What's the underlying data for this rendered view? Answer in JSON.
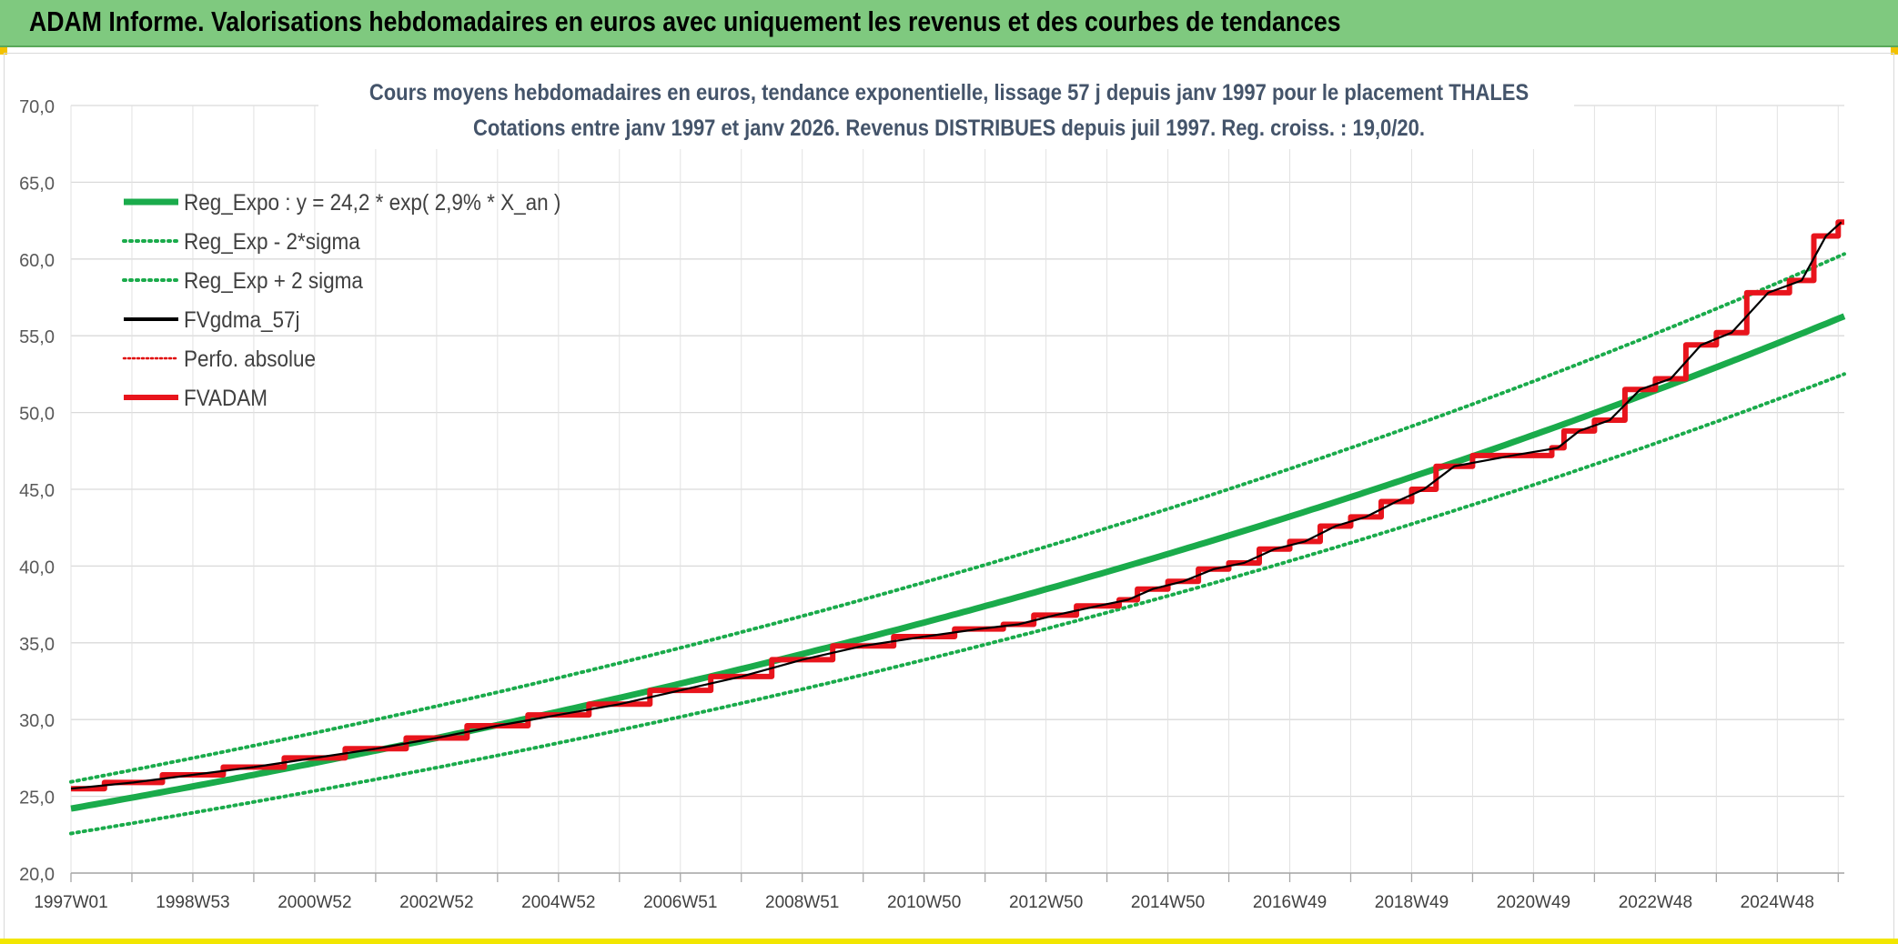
{
  "banner": {
    "title": "ADAM Informe. Valorisations hebdomadaires en euros avec uniquement les revenus et des courbes de tendances",
    "color": "#7fc97f"
  },
  "chart_data": {
    "type": "line",
    "title": "Cours moyens hebdomadaires en euros, tendance exponentielle, lissage 57 j depuis janv 1997 pour le placement THALES",
    "subtitle": "Cotations entre janv 1997 et janv 2026. Revenus DISTRIBUES depuis juil 1997. Reg. croiss. : 19,0/20.",
    "xlabel": "",
    "ylabel": "",
    "ylim": [
      20,
      70
    ],
    "xlim_years": [
      1997.0,
      2026.1
    ],
    "y_ticks": [
      "20,0",
      "25,0",
      "30,0",
      "35,0",
      "40,0",
      "45,0",
      "50,0",
      "55,0",
      "60,0",
      "65,0",
      "70,0"
    ],
    "x_ticks": [
      {
        "label": "1997W01",
        "year": 1997.0
      },
      {
        "label": "1998W53",
        "year": 1999.0
      },
      {
        "label": "2000W52",
        "year": 2001.0
      },
      {
        "label": "2002W52",
        "year": 2003.0
      },
      {
        "label": "2004W52",
        "year": 2005.0
      },
      {
        "label": "2006W51",
        "year": 2007.0
      },
      {
        "label": "2008W51",
        "year": 2009.0
      },
      {
        "label": "2010W50",
        "year": 2011.0
      },
      {
        "label": "2012W50",
        "year": 2013.0
      },
      {
        "label": "2014W50",
        "year": 2015.0
      },
      {
        "label": "2016W49",
        "year": 2017.0
      },
      {
        "label": "2018W49",
        "year": 2019.0
      },
      {
        "label": "2020W49",
        "year": 2021.0
      },
      {
        "label": "2022W48",
        "year": 2023.0
      },
      {
        "label": "2024W48",
        "year": 2025.0
      }
    ],
    "grid": true,
    "legend_position": "top-left",
    "regression": {
      "a": 24.2,
      "rate": 0.029,
      "sigma_low_factor": 0.933,
      "sigma_high_factor": 1.072
    },
    "series": [
      {
        "name": "Reg_Expo : y = 24,2 * exp( 2,9% *  X_an )",
        "color": "#1aab4b",
        "style": "solid-thick"
      },
      {
        "name": "Reg_Exp - 2*sigma",
        "color": "#1aab4b",
        "style": "dotted"
      },
      {
        "name": "Reg_Exp + 2 sigma",
        "color": "#1aab4b",
        "style": "dotted"
      },
      {
        "name": "FVgdma_57j",
        "color": "#000000",
        "style": "solid-thin"
      },
      {
        "name": "Perfo. absolue",
        "color": "#e00000",
        "style": "dotted-thin"
      },
      {
        "name": "FVADAM",
        "color": "#e8141c",
        "style": "solid-thick",
        "steps": [
          {
            "year": 1997.0,
            "value": 25.5
          },
          {
            "year": 1997.55,
            "value": 25.9
          },
          {
            "year": 1998.5,
            "value": 26.4
          },
          {
            "year": 1999.5,
            "value": 26.9
          },
          {
            "year": 2000.5,
            "value": 27.5
          },
          {
            "year": 2001.5,
            "value": 28.1
          },
          {
            "year": 2002.5,
            "value": 28.8
          },
          {
            "year": 2003.5,
            "value": 29.6
          },
          {
            "year": 2004.5,
            "value": 30.3
          },
          {
            "year": 2005.5,
            "value": 31.0
          },
          {
            "year": 2006.5,
            "value": 31.9
          },
          {
            "year": 2007.5,
            "value": 32.8
          },
          {
            "year": 2008.5,
            "value": 33.9
          },
          {
            "year": 2009.5,
            "value": 34.8
          },
          {
            "year": 2010.5,
            "value": 35.4
          },
          {
            "year": 2011.5,
            "value": 35.9
          },
          {
            "year": 2012.3,
            "value": 36.2
          },
          {
            "year": 2012.8,
            "value": 36.8
          },
          {
            "year": 2013.5,
            "value": 37.4
          },
          {
            "year": 2014.2,
            "value": 37.8
          },
          {
            "year": 2014.5,
            "value": 38.5
          },
          {
            "year": 2015.0,
            "value": 39.0
          },
          {
            "year": 2015.5,
            "value": 39.8
          },
          {
            "year": 2016.0,
            "value": 40.2
          },
          {
            "year": 2016.5,
            "value": 41.1
          },
          {
            "year": 2017.0,
            "value": 41.6
          },
          {
            "year": 2017.5,
            "value": 42.6
          },
          {
            "year": 2018.0,
            "value": 43.2
          },
          {
            "year": 2018.5,
            "value": 44.2
          },
          {
            "year": 2019.0,
            "value": 45.0
          },
          {
            "year": 2019.4,
            "value": 46.5
          },
          {
            "year": 2020.0,
            "value": 47.2
          },
          {
            "year": 2021.3,
            "value": 47.7
          },
          {
            "year": 2021.5,
            "value": 48.8
          },
          {
            "year": 2022.0,
            "value": 49.5
          },
          {
            "year": 2022.5,
            "value": 51.5
          },
          {
            "year": 2023.0,
            "value": 52.2
          },
          {
            "year": 2023.5,
            "value": 54.4
          },
          {
            "year": 2024.0,
            "value": 55.2
          },
          {
            "year": 2024.5,
            "value": 57.8
          },
          {
            "year": 2025.2,
            "value": 58.6
          },
          {
            "year": 2025.6,
            "value": 61.5
          },
          {
            "year": 2026.0,
            "value": 62.4
          }
        ]
      }
    ]
  }
}
